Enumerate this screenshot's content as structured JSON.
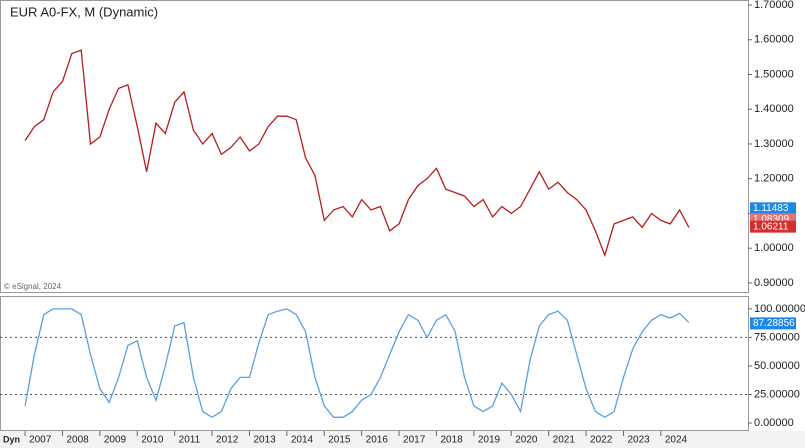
{
  "chart_data": [
    {
      "type": "line",
      "title": "EUR A0-FX, M (Dynamic)",
      "credit": "© eSignal, 2024",
      "x": [
        2007,
        2007.25,
        2007.5,
        2007.75,
        2008,
        2008.25,
        2008.5,
        2008.75,
        2009,
        2009.25,
        2009.5,
        2009.75,
        2010,
        2010.25,
        2010.5,
        2010.75,
        2011,
        2011.25,
        2011.5,
        2011.75,
        2012,
        2012.25,
        2012.5,
        2012.75,
        2013,
        2013.25,
        2013.5,
        2013.75,
        2014,
        2014.25,
        2014.5,
        2014.75,
        2015,
        2015.25,
        2015.5,
        2015.75,
        2016,
        2016.25,
        2016.5,
        2016.75,
        2017,
        2017.25,
        2017.5,
        2017.75,
        2018,
        2018.25,
        2018.5,
        2018.75,
        2019,
        2019.25,
        2019.5,
        2019.75,
        2020,
        2020.25,
        2020.5,
        2020.75,
        2021,
        2021.25,
        2021.5,
        2021.75,
        2022,
        2022.25,
        2022.5,
        2022.75,
        2023,
        2023.25,
        2023.5,
        2023.75,
        2024,
        2024.25,
        2024.5,
        2024.75
      ],
      "values": [
        1.31,
        1.35,
        1.37,
        1.45,
        1.48,
        1.56,
        1.57,
        1.3,
        1.32,
        1.4,
        1.46,
        1.47,
        1.35,
        1.22,
        1.36,
        1.33,
        1.42,
        1.45,
        1.34,
        1.3,
        1.33,
        1.27,
        1.29,
        1.32,
        1.28,
        1.3,
        1.35,
        1.38,
        1.38,
        1.37,
        1.26,
        1.21,
        1.08,
        1.11,
        1.12,
        1.09,
        1.14,
        1.11,
        1.12,
        1.05,
        1.07,
        1.14,
        1.18,
        1.2,
        1.23,
        1.17,
        1.16,
        1.15,
        1.12,
        1.14,
        1.09,
        1.12,
        1.1,
        1.12,
        1.17,
        1.22,
        1.17,
        1.19,
        1.16,
        1.14,
        1.11,
        1.05,
        0.98,
        1.07,
        1.08,
        1.09,
        1.06,
        1.1,
        1.08,
        1.07,
        1.11,
        1.06
      ],
      "color": "#b71c1c",
      "xlim": [
        2006.33,
        2026.33
      ],
      "ylim": [
        0.874,
        1.7115
      ],
      "yticks": [
        {
          "value": 1.7,
          "label": "1.70000"
        },
        {
          "value": 1.6,
          "label": "1.60000"
        },
        {
          "value": 1.5,
          "label": "1.50000"
        },
        {
          "value": 1.4,
          "label": "1.40000"
        },
        {
          "value": 1.3,
          "label": "1.30000"
        },
        {
          "value": 1.2,
          "label": "1.20000"
        },
        {
          "value": 1.1,
          "label": "1.10000"
        },
        {
          "value": 1.0,
          "label": "1.00000"
        },
        {
          "value": 0.9,
          "label": "0.90000"
        }
      ],
      "price_markers": [
        {
          "value": 1.11483,
          "color": "#1e88e5"
        },
        {
          "value": 1.08309,
          "color": "#e57373"
        },
        {
          "value": 1.06211,
          "color": "#d32f2f"
        }
      ]
    },
    {
      "type": "line",
      "x": [
        2007,
        2007.25,
        2007.5,
        2007.75,
        2008,
        2008.25,
        2008.5,
        2008.75,
        2009,
        2009.25,
        2009.5,
        2009.75,
        2010,
        2010.25,
        2010.5,
        2010.75,
        2011,
        2011.25,
        2011.5,
        2011.75,
        2012,
        2012.25,
        2012.5,
        2012.75,
        2013,
        2013.25,
        2013.5,
        2013.75,
        2014,
        2014.25,
        2014.5,
        2014.75,
        2015,
        2015.25,
        2015.5,
        2015.75,
        2016,
        2016.25,
        2016.5,
        2016.75,
        2017,
        2017.25,
        2017.5,
        2017.75,
        2018,
        2018.25,
        2018.5,
        2018.75,
        2019,
        2019.25,
        2019.5,
        2019.75,
        2020,
        2020.25,
        2020.5,
        2020.75,
        2021,
        2021.25,
        2021.5,
        2021.75,
        2022,
        2022.25,
        2022.5,
        2022.75,
        2023,
        2023.25,
        2023.5,
        2023.75,
        2024,
        2024.25,
        2024.5,
        2024.75
      ],
      "values": [
        15,
        60,
        95,
        100,
        100,
        100,
        95,
        60,
        30,
        18,
        40,
        68,
        72,
        40,
        20,
        50,
        85,
        88,
        40,
        10,
        5,
        10,
        30,
        40,
        40,
        70,
        95,
        98,
        100,
        95,
        80,
        40,
        15,
        5,
        5,
        10,
        20,
        25,
        40,
        60,
        80,
        95,
        90,
        75,
        90,
        95,
        80,
        40,
        15,
        10,
        15,
        35,
        25,
        10,
        55,
        85,
        95,
        98,
        90,
        60,
        30,
        10,
        5,
        10,
        40,
        65,
        80,
        90,
        95,
        92,
        96,
        88
      ],
      "color": "#5aa0e0",
      "xlim": [
        2006.33,
        2026.33
      ],
      "ylim": [
        -6.1,
        110.4
      ],
      "yticks": [
        {
          "value": 100,
          "label": "100.00000"
        },
        {
          "value": 75,
          "label": "75.00000"
        },
        {
          "value": 50,
          "label": "50.00000"
        },
        {
          "value": 25,
          "label": "25.00000"
        },
        {
          "value": 0,
          "label": "0.00000"
        }
      ],
      "dashed_levels": [
        75,
        25
      ],
      "xticks": [
        2007,
        2008,
        2009,
        2010,
        2011,
        2012,
        2013,
        2014,
        2015,
        2016,
        2017,
        2018,
        2019,
        2020,
        2021,
        2022,
        2023,
        2024
      ],
      "price_markers": [
        {
          "value": 87.28856,
          "color": "#1e88e5"
        }
      ],
      "corner_label": "Dyn"
    }
  ]
}
